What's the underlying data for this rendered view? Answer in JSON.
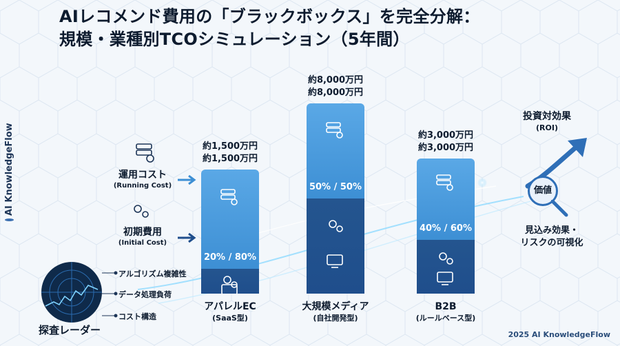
{
  "title_line1": "AIレコメンド費用の「ブラックボックス」を完全分解：",
  "title_line2": "規模・業種別TCOシミュレーション（5年間）",
  "side_brand": "AI KnowledgeFlow",
  "legend": {
    "running_ja": "運用コスト",
    "running_en": "(Running Cost)",
    "initial_ja": "初期費用",
    "initial_en": "(Initial Cost)"
  },
  "chart_data": {
    "type": "bar",
    "title": "AIレコメンド費用の「ブラックボックス」を完全分解：規模・業種別TCOシミュレーション（5年間）",
    "unit": "万円",
    "series": [
      {
        "name": "運用コスト (Running Cost)",
        "color": "#3d8fd4"
      },
      {
        "name": "初期費用 (Initial Cost)",
        "color": "#1f4e8c"
      }
    ],
    "bars": [
      {
        "category": "アパレルEC",
        "subcategory": "(SaaS型)",
        "amount_label": "約1,500万円",
        "total": 1500,
        "ratio_label": "20% / 80%",
        "running_share": 0.8,
        "initial_share": 0.2
      },
      {
        "category": "大規模メディア",
        "subcategory": "(自社開発型)",
        "amount_label": "約8,000万円",
        "total": 8000,
        "ratio_label": "50% / 50%",
        "running_share": 0.5,
        "initial_share": 0.5
      },
      {
        "category": "B2B",
        "subcategory": "(ルールベース型)",
        "amount_label": "約3,000万円",
        "total": 3000,
        "ratio_label": "40% / 60%",
        "running_share": 0.6,
        "initial_share": 0.4
      }
    ]
  },
  "radar": {
    "title": "探査レーダー",
    "items": [
      "アルゴリズム複雑性",
      "データ処理負荷",
      "コスト構造"
    ]
  },
  "roi": {
    "title_ja": "投資対効果",
    "title_en": "(ROI)",
    "badge": "価値",
    "visibility_line1": "見込み効果・",
    "visibility_line2": "リスクの可視化"
  },
  "footer": "2025 AI KnowledgeFlow",
  "colors": {
    "running": "#3d8fd4",
    "initial": "#1f4e8c",
    "accent": "#2f6fb7",
    "text": "#0d1b2e"
  },
  "icons": [
    "server-gear-icon",
    "gears-icon",
    "code-monitor-icon",
    "brain-icon",
    "magnifier-icon",
    "arrow-up-right-icon",
    "radar-icon"
  ]
}
